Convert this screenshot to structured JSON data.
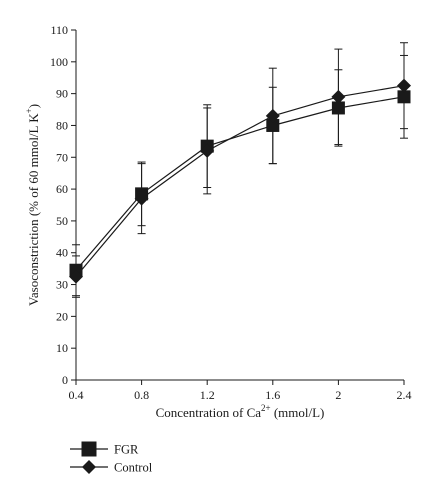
{
  "chart_data": {
    "type": "line",
    "xlabel_prefix": "Concentration of Ca",
    "xlabel_sup": "2+",
    "xlabel_suffix": " (mmol/L)",
    "ylabel_prefix": "Vasoconstriction (% of 60 mmol/L K",
    "ylabel_sup": "+",
    "ylabel_suffix": ")",
    "x": [
      0.4,
      0.8,
      1.2,
      1.6,
      2.0,
      2.4
    ],
    "x_tick_labels": [
      "0.4",
      "0.8",
      "1.2",
      "1.6",
      "2",
      "2.4"
    ],
    "y_ticks": [
      0,
      10,
      20,
      30,
      40,
      50,
      60,
      70,
      80,
      90,
      100,
      110
    ],
    "xlim": [
      0.4,
      2.4
    ],
    "ylim": [
      0,
      110
    ],
    "grid": false,
    "legend_position": "bottom-left",
    "series": [
      {
        "name": "FGR",
        "marker": "square",
        "values": [
          34.5,
          58.5,
          73.5,
          80,
          85.5,
          89
        ],
        "error": [
          8,
          10,
          13,
          12,
          12,
          13
        ]
      },
      {
        "name": "Control",
        "marker": "diamond",
        "values": [
          32.5,
          57,
          72,
          83,
          89,
          92.5
        ],
        "error": [
          6.5,
          11,
          13.5,
          15,
          15,
          13.5
        ]
      }
    ]
  }
}
